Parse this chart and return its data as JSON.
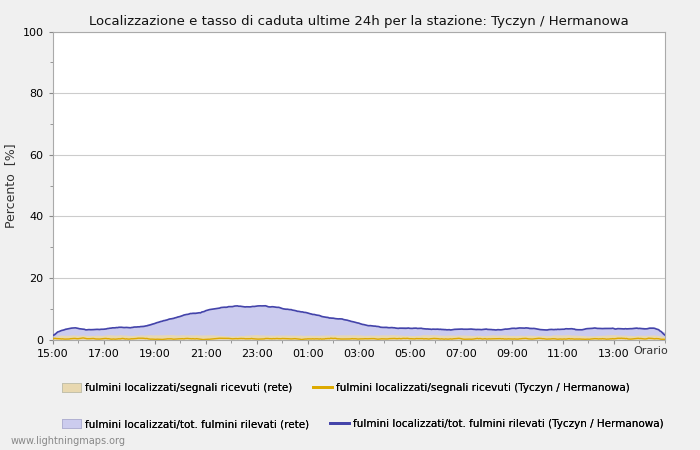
{
  "title": "Localizzazione e tasso di caduta ultime 24h per la stazione: Tyczyn / Hermanowa",
  "ylabel": "Percento  [%]",
  "xlim": [
    0,
    24
  ],
  "ylim": [
    0,
    100
  ],
  "yticks": [
    0,
    20,
    40,
    60,
    80,
    100
  ],
  "xtick_labels": [
    "15:00",
    "17:00",
    "19:00",
    "21:00",
    "23:00",
    "01:00",
    "03:00",
    "05:00",
    "07:00",
    "09:00",
    "11:00",
    "13:00"
  ],
  "xtick_positions": [
    0,
    2,
    4,
    6,
    8,
    10,
    12,
    14,
    16,
    18,
    20,
    22
  ],
  "background_color": "#f0f0f0",
  "plot_bg_color": "#ffffff",
  "grid_color": "#cccccc",
  "fill_rete_color": "#e8d8b0",
  "fill_tyczyn_color": "#ccccee",
  "line_segnali_color": "#ddaa00",
  "line_fulmini_color": "#4444aa",
  "watermark": "www.lightningmaps.org",
  "legend_row1_left": "fulmini localizzati/segnali ricevuti (rete)",
  "legend_row1_right": "fulmini localizzati/segnali ricevuti (Tyczyn / Hermanowa)",
  "legend_row2_left": "fulmini localizzati/tot. fulmini rilevati (rete)",
  "legend_row2_right": "fulmini localizzati/tot. fulmini rilevati (Tyczyn / Hermanowa)",
  "orario_label": "Orario"
}
